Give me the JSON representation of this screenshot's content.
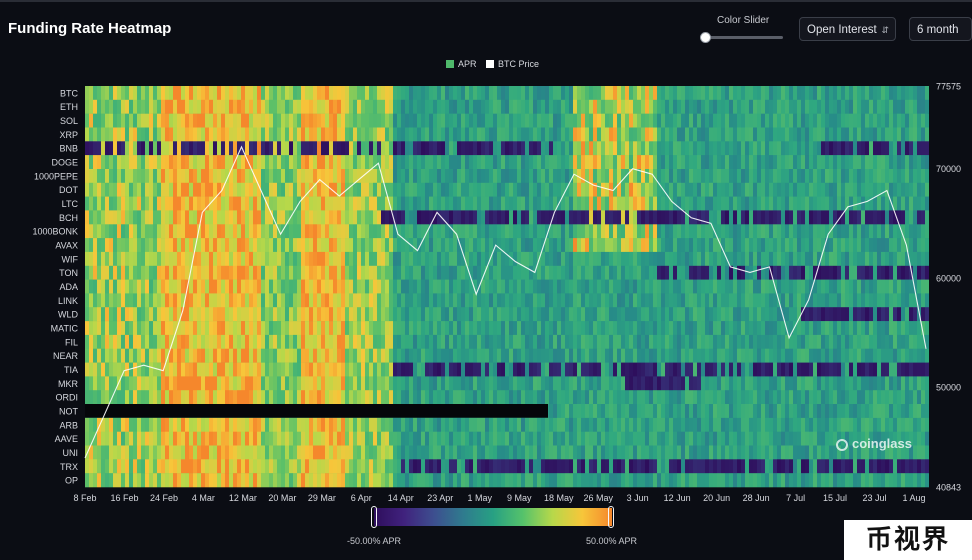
{
  "header": {
    "title": "Funding Rate Heatmap",
    "slider_label": "Color Slider",
    "select_metric": "Open Interest",
    "select_range": "6 month"
  },
  "legend": [
    {
      "label": "APR",
      "color": "#4fb86b"
    },
    {
      "label": "BTC Price",
      "color": "#ffffff"
    }
  ],
  "colorbar": {
    "min_label": "-50.00% APR",
    "max_label": "50.00% APR",
    "min": -50,
    "max": 50
  },
  "watermark": "coinglass",
  "badge": "币视界",
  "chart_data": {
    "type": "heatmap",
    "title": "Funding Rate Heatmap",
    "x_ticks": [
      "8 Feb",
      "16 Feb",
      "24 Feb",
      "4 Mar",
      "12 Mar",
      "20 Mar",
      "29 Mar",
      "6 Apr",
      "14 Apr",
      "23 Apr",
      "1 May",
      "9 May",
      "18 May",
      "26 May",
      "3 Jun",
      "12 Jun",
      "20 Jun",
      "28 Jun",
      "7 Jul",
      "15 Jul",
      "23 Jul",
      "1 Aug"
    ],
    "rows": [
      "BTC",
      "ETH",
      "SOL",
      "XRP",
      "BNB",
      "DOGE",
      "1000PEPE",
      "DOT",
      "LTC",
      "BCH",
      "1000BONK",
      "AVAX",
      "WIF",
      "TON",
      "ADA",
      "LINK",
      "WLD",
      "MATIC",
      "FIL",
      "NEAR",
      "TIA",
      "MKR",
      "ORDI",
      "NOT",
      "ARB",
      "AAVE",
      "UNI",
      "TRX",
      "OP"
    ],
    "y2_ticks": [
      77575,
      70000,
      60000,
      50000,
      40843
    ],
    "y2_range": [
      40843,
      77575
    ],
    "value_range": [
      -50,
      50
    ],
    "unit": "% APR",
    "series": [
      {
        "name": "BTC Price",
        "dates": [
          "8 Feb",
          "12 Feb",
          "16 Feb",
          "20 Feb",
          "24 Feb",
          "28 Feb",
          "4 Mar",
          "8 Mar",
          "12 Mar",
          "16 Mar",
          "20 Mar",
          "24 Mar",
          "29 Mar",
          "2 Apr",
          "6 Apr",
          "10 Apr",
          "14 Apr",
          "18 Apr",
          "23 Apr",
          "27 Apr",
          "1 May",
          "5 May",
          "9 May",
          "13 May",
          "18 May",
          "22 May",
          "26 May",
          "30 May",
          "3 Jun",
          "7 Jun",
          "12 Jun",
          "16 Jun",
          "20 Jun",
          "24 Jun",
          "28 Jun",
          "2 Jul",
          "7 Jul",
          "11 Jul",
          "15 Jul",
          "19 Jul",
          "23 Jul",
          "27 Jul",
          "1 Aug",
          "5 Aug"
        ],
        "values": [
          43500,
          47500,
          51500,
          52000,
          51500,
          57000,
          66000,
          68000,
          72000,
          68000,
          64000,
          67000,
          69000,
          67500,
          69000,
          70500,
          64000,
          62500,
          66000,
          64000,
          58500,
          63000,
          61500,
          60500,
          66000,
          69500,
          68500,
          68000,
          70000,
          69500,
          67000,
          65500,
          65000,
          61000,
          60500,
          61000,
          54500,
          58000,
          64000,
          66500,
          67000,
          68000,
          63000,
          53500
        ]
      }
    ]
  }
}
